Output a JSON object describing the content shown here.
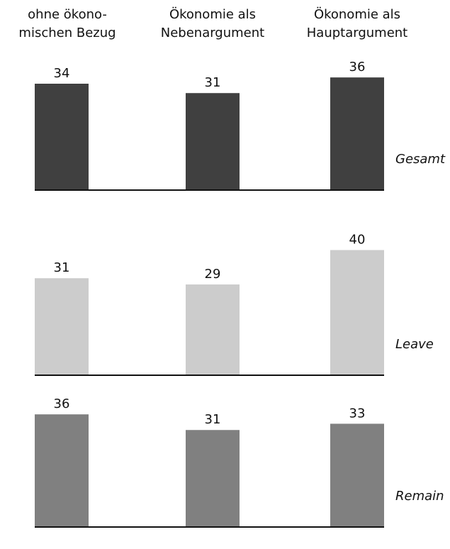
{
  "chart_data": {
    "type": "bar",
    "categories": [
      [
        "ohne ökono-",
        "mischen Bezug"
      ],
      [
        "Ökonomie als",
        "Nebenargument"
      ],
      [
        "Ökonomie als",
        "Hauptargument"
      ]
    ],
    "series": [
      {
        "name": "Gesamt",
        "values": [
          34,
          31,
          36
        ],
        "color": "#404040"
      },
      {
        "name": "Leave",
        "values": [
          31,
          29,
          40
        ],
        "color": "#cccccc"
      },
      {
        "name": "Remain",
        "values": [
          36,
          31,
          33
        ],
        "color": "#808080"
      }
    ],
    "grid": false,
    "legend": "none"
  }
}
